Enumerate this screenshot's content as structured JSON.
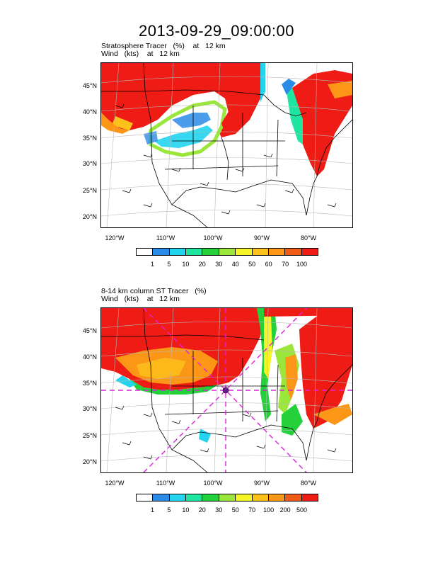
{
  "title": "2013-09-29_09:00:00",
  "panel1": {
    "line1": "Stratosphere Tracer   (%)    at   12 km",
    "line2": "Wind   (kts)    at   12 km",
    "colorbar": {
      "labels": [
        "1",
        "5",
        "10",
        "20",
        "30",
        "40",
        "50",
        "60",
        "70",
        "100"
      ],
      "colors": [
        "#ffffff",
        "#2b8be8",
        "#22d4ee",
        "#1ee6a0",
        "#24d13a",
        "#9be63a",
        "#f5f525",
        "#fcc21a",
        "#fb9617",
        "#f25a18",
        "#ee1c14"
      ]
    }
  },
  "panel2": {
    "line1": "8-14 km column ST Tracer   (%)",
    "line2": "Wind   (kts)    at   12 km",
    "colorbar": {
      "labels": [
        "1",
        "5",
        "10",
        "20",
        "30",
        "50",
        "70",
        "100",
        "200",
        "500"
      ],
      "colors": [
        "#ffffff",
        "#2b8be8",
        "#22d4ee",
        "#1ee6a0",
        "#24d13a",
        "#9be63a",
        "#f5f525",
        "#fcc21a",
        "#fb9617",
        "#f25a18",
        "#ee1c14"
      ]
    }
  },
  "lat_labels": [
    "45°N",
    "40°N",
    "35°N",
    "30°N",
    "25°N",
    "20°N"
  ],
  "lon_labels": [
    "120°W",
    "110°W",
    "100°W",
    "90°W",
    "80°W"
  ]
}
